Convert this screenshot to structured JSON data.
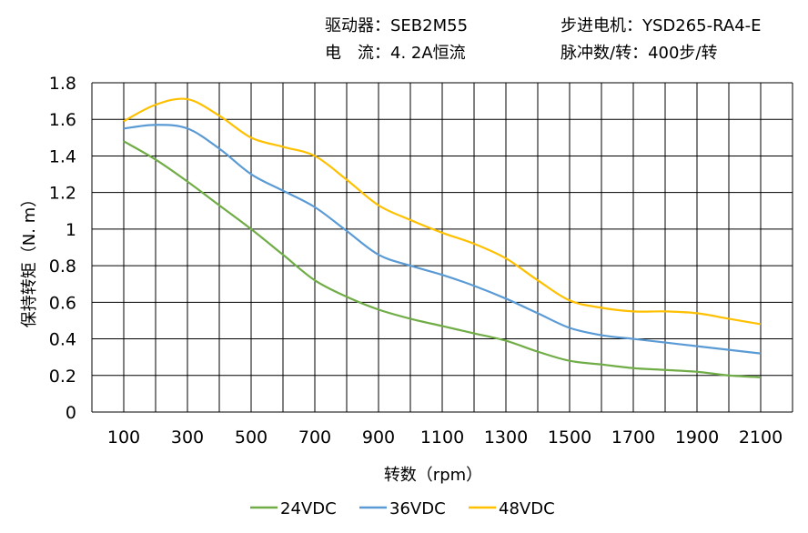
{
  "header": {
    "driver": "驱动器：SEB2M55",
    "current": "电　流：4. 2A恒流",
    "motor": "步进电机：YSD265-RA4-E",
    "pulses": "脉冲数/转：400步/转"
  },
  "chart_data": {
    "type": "line",
    "title": "",
    "xlabel": "转数（rpm）",
    "ylabel": "保持转矩（N. m）",
    "xlim": [
      0,
      2200
    ],
    "ylim": [
      0,
      1.8
    ],
    "grid": true,
    "legend_position": "bottom",
    "x_ticks": [
      100,
      300,
      500,
      700,
      900,
      1100,
      1300,
      1500,
      1700,
      1900,
      2100
    ],
    "y_ticks": [
      "0",
      "0.2",
      "0.4",
      "0.6",
      "0.8",
      "1",
      "1.2",
      "1.4",
      "1.6",
      "1.8"
    ],
    "x": [
      100,
      200,
      300,
      400,
      500,
      600,
      700,
      800,
      900,
      1000,
      1100,
      1200,
      1300,
      1400,
      1500,
      1600,
      1700,
      1800,
      1900,
      2000,
      2100
    ],
    "series": [
      {
        "name": "24VDC",
        "color": "#70ad47",
        "values": [
          1.48,
          1.38,
          1.26,
          1.13,
          1.0,
          0.86,
          0.72,
          0.63,
          0.56,
          0.51,
          0.47,
          0.43,
          0.39,
          0.33,
          0.28,
          0.26,
          0.24,
          0.23,
          0.22,
          0.2,
          0.19
        ]
      },
      {
        "name": "36VDC",
        "color": "#5b9bd5",
        "values": [
          1.55,
          1.57,
          1.55,
          1.44,
          1.3,
          1.21,
          1.12,
          0.99,
          0.86,
          0.8,
          0.75,
          0.69,
          0.62,
          0.54,
          0.46,
          0.42,
          0.4,
          0.38,
          0.36,
          0.34,
          0.32
        ]
      },
      {
        "name": "48VDC",
        "color": "#ffc000",
        "values": [
          1.59,
          1.68,
          1.71,
          1.62,
          1.5,
          1.45,
          1.4,
          1.27,
          1.13,
          1.05,
          0.98,
          0.92,
          0.84,
          0.72,
          0.61,
          0.57,
          0.55,
          0.55,
          0.54,
          0.51,
          0.48
        ]
      }
    ]
  }
}
